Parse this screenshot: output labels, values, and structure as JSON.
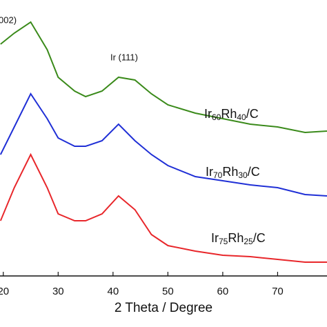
{
  "chart_data": {
    "type": "line",
    "xlabel": "2 Theta / Degree",
    "x": [
      19.5,
      22,
      25,
      28,
      30,
      33,
      35,
      38,
      41,
      44,
      47,
      50,
      55,
      60,
      65,
      70,
      75,
      79
    ],
    "series": [
      {
        "label_parts": [
          "Ir",
          "60",
          "Rh",
          "40",
          "/C"
        ],
        "color": "#3a8a1a",
        "values": [
          84,
          88,
          92,
          82,
          72,
          67,
          65,
          67,
          72,
          71,
          66,
          62,
          59,
          57,
          55,
          54,
          52,
          52.5
        ]
      },
      {
        "label_parts": [
          "Ir",
          "70",
          "Rh",
          "30",
          "/C"
        ],
        "color": "#1f2fd6",
        "values": [
          44,
          54,
          66,
          57,
          50,
          47,
          47,
          49,
          55,
          49,
          44,
          40,
          36,
          34.5,
          33,
          32,
          29.5,
          29
        ]
      },
      {
        "label_parts": [
          "Ir",
          "75",
          "Rh",
          "25",
          "/C"
        ],
        "color": "#e8262a",
        "values": [
          20,
          32,
          44,
          32,
          22.5,
          20,
          20,
          22.5,
          29,
          24,
          15,
          11,
          9,
          7.5,
          7,
          6,
          5,
          5
        ]
      }
    ],
    "annotations": [
      "002)",
      "Ir (111)"
    ],
    "xlim": [
      19.4,
      79
    ],
    "xticks": [
      20,
      30,
      40,
      50,
      60,
      70
    ],
    "ylim": [
      0,
      100
    ]
  }
}
